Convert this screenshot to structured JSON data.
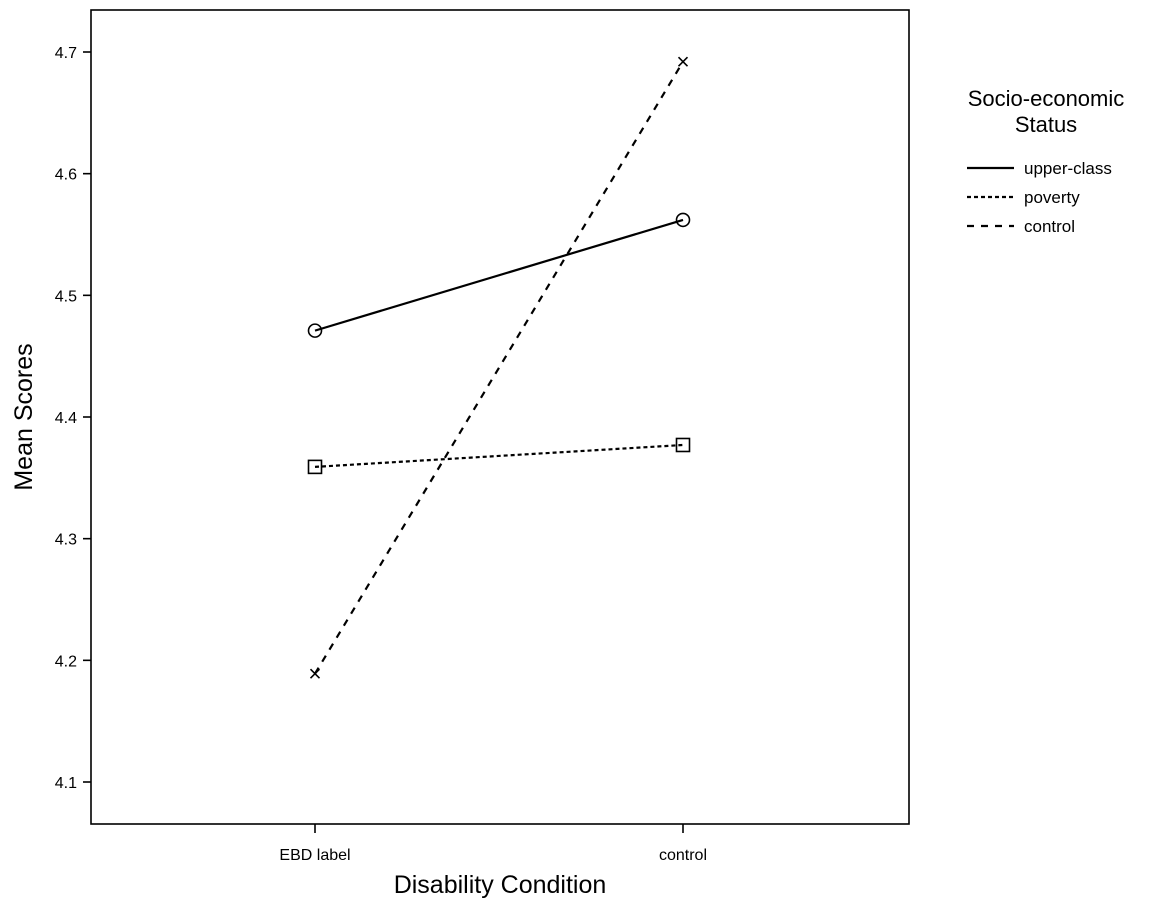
{
  "chart_data": {
    "type": "line",
    "xlabel": "Disability Condition",
    "ylabel": "Mean Scores",
    "categories": [
      "EBD label",
      "control"
    ],
    "ylim": [
      4.05,
      4.73
    ],
    "yticks": [
      "4.1",
      "4.2",
      "4.3",
      "4.4",
      "4.5",
      "4.6",
      "4.7"
    ],
    "grid": false,
    "legend": {
      "title_lines": [
        "Socio-economic",
        "Status"
      ],
      "placement": "right-outside"
    },
    "series": [
      {
        "name": "upper-class",
        "values": [
          4.471,
          4.562
        ],
        "line_style": "solid",
        "marker": "circle"
      },
      {
        "name": "poverty",
        "values": [
          4.359,
          4.377
        ],
        "line_style": "dotted",
        "marker": "square"
      },
      {
        "name": "control",
        "values": [
          4.189,
          4.692
        ],
        "line_style": "dashed",
        "marker": "x"
      }
    ]
  }
}
